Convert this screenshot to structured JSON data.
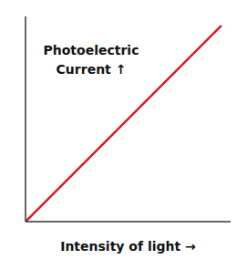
{
  "chart_data": {
    "type": "line",
    "xlabel": "Intensity of light →",
    "annotation": "Photoelectric\nCurrent ↑",
    "x": [
      0,
      1
    ],
    "values": [
      0,
      1
    ],
    "color": "#cc2222",
    "xlim": [
      0,
      1.05
    ],
    "ylim": [
      0,
      1.05
    ],
    "xticks": [],
    "yticks": [],
    "grid": false,
    "tick_labels": false
  }
}
